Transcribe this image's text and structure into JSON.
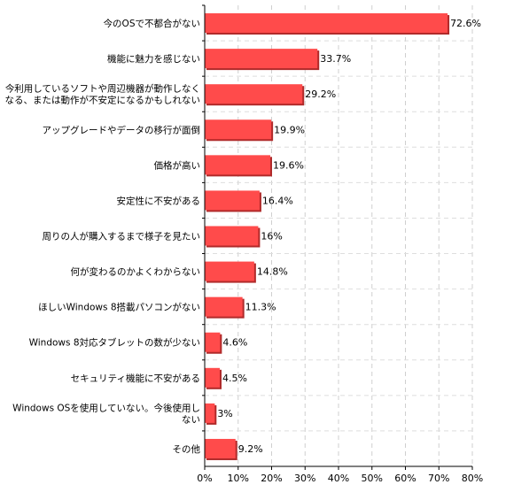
{
  "chart_data": {
    "type": "bar",
    "orientation": "horizontal",
    "categories": [
      "今のOSで不都合がない",
      "機能に魅力を感じない",
      "今利用しているソフトや周辺機器が動作しなく\nなる、または動作が不安定になるかもしれない",
      "アップグレードやデータの移行が面倒",
      "価格が高い",
      "安定性に不安がある",
      "周りの人が購入するまで様子を見たい",
      "何が変わるのかよくわからない",
      "ほしいWindows 8搭載パソコンがない",
      "Windows 8対応タブレットの数が少ない",
      "セキュリティ機能に不安がある",
      "Windows OSを使用していない。今後使用し\nない",
      "その他"
    ],
    "values": [
      72.6,
      33.7,
      29.2,
      19.9,
      19.6,
      16.4,
      16,
      14.8,
      11.3,
      4.6,
      4.5,
      3,
      9.2
    ],
    "value_labels": [
      "72.6%",
      "33.7%",
      "29.2%",
      "19.9%",
      "19.6%",
      "16.4%",
      "16%",
      "14.8%",
      "11.3%",
      "4.6%",
      "4.5%",
      "3%",
      "9.2%"
    ],
    "xlim": [
      0,
      80
    ],
    "xticks": [
      0,
      10,
      20,
      30,
      40,
      50,
      60,
      70,
      80
    ],
    "xtick_labels": [
      "0%",
      "10%",
      "20%",
      "30%",
      "40%",
      "50%",
      "60%",
      "70%",
      "80%"
    ],
    "grid": true,
    "bar_color": "#ff4b4b",
    "bar_shadow_color": "#b02a2a"
  }
}
